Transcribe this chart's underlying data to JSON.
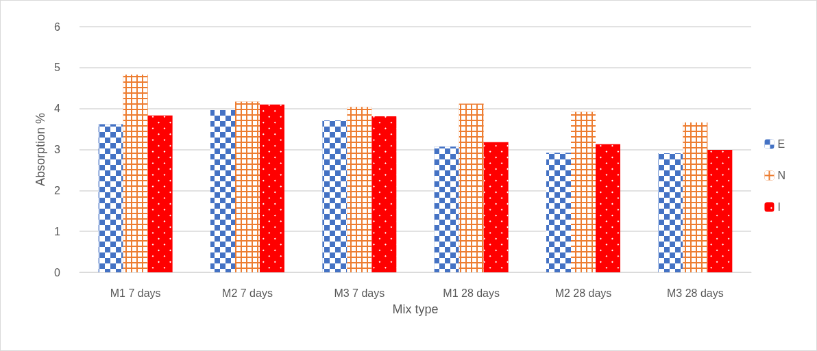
{
  "chart_data": {
    "type": "bar",
    "xlabel": "Mix type",
    "ylabel": "Absorption %",
    "categories": [
      "M1 7 days",
      "M2 7 days",
      "M3 7 days",
      "M1 28 days",
      "M2 28 days",
      "M3 28 days"
    ],
    "series": [
      {
        "name": "E",
        "color": "#4472c4",
        "values": [
          3.62,
          3.96,
          3.71,
          3.07,
          2.92,
          2.91
        ]
      },
      {
        "name": "N",
        "color": "#ed7d31",
        "values": [
          4.83,
          4.17,
          4.04,
          4.12,
          3.92,
          3.66
        ]
      },
      {
        "name": "I",
        "color": "#ff0000",
        "values": [
          3.83,
          4.1,
          3.81,
          3.18,
          3.13,
          2.99
        ]
      }
    ],
    "ylim": [
      0,
      6
    ],
    "yticks": [
      0,
      1,
      2,
      3,
      4,
      5,
      6
    ],
    "grid": "y",
    "legend": "right"
  }
}
